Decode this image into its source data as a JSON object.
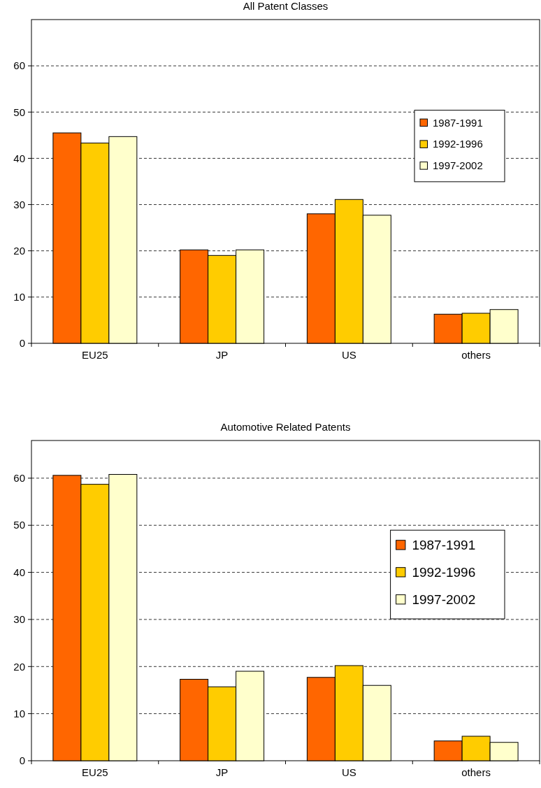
{
  "chart_data": [
    {
      "type": "bar",
      "title": "All Patent Classes",
      "categories": [
        "EU25",
        "JP",
        "US",
        "others"
      ],
      "series": [
        {
          "name": "1987-1991",
          "color": "#ff6600",
          "values": [
            45.5,
            20.2,
            28,
            6.3
          ]
        },
        {
          "name": "1992-1996",
          "color": "#ffcc00",
          "values": [
            43.3,
            19,
            31.1,
            6.5
          ]
        },
        {
          "name": "1997-2002",
          "color": "#ffffcc",
          "values": [
            44.7,
            20.2,
            27.7,
            7.3
          ]
        }
      ],
      "ylim": [
        0,
        70
      ],
      "yticks": [
        0,
        10,
        20,
        30,
        40,
        50,
        60
      ],
      "grid": "y",
      "legend": "top right"
    },
    {
      "type": "bar",
      "title": "Automotive Related Patents",
      "categories": [
        "EU25",
        "JP",
        "US",
        "others"
      ],
      "series": [
        {
          "name": "1987-1991",
          "color": "#ff6600",
          "values": [
            60.6,
            17.3,
            17.7,
            4.2
          ]
        },
        {
          "name": "1992-1996",
          "color": "#ffcc00",
          "values": [
            58.7,
            15.7,
            20.2,
            5.2
          ]
        },
        {
          "name": "1997-2002",
          "color": "#ffffcc",
          "values": [
            60.8,
            19,
            16,
            3.9
          ]
        }
      ],
      "ylim": [
        0,
        68
      ],
      "yticks": [
        0,
        10,
        20,
        30,
        40,
        50,
        60
      ],
      "grid": "y",
      "legend": "top right"
    }
  ]
}
